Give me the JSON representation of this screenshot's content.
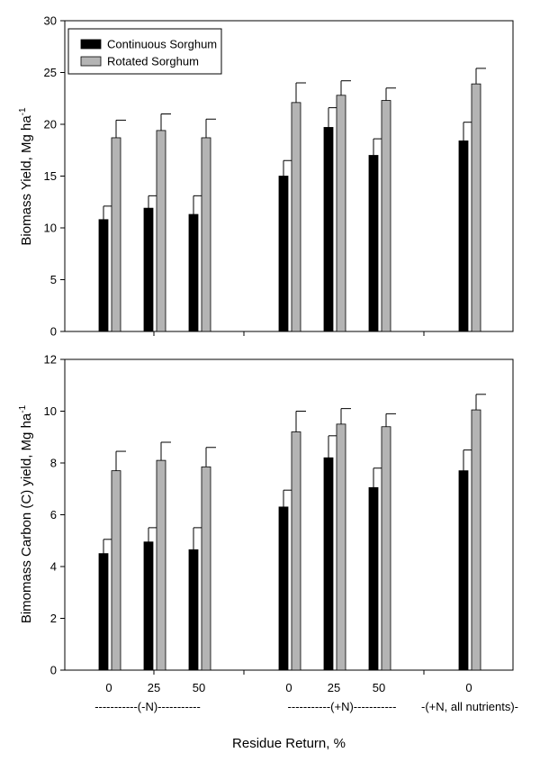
{
  "colors": {
    "continuous": "#000000",
    "rotated": "#b4b4b4",
    "axis": "#000000"
  },
  "legend": {
    "items": [
      {
        "label": "Continuous Sorghum",
        "color": "#000000"
      },
      {
        "label": "Rotated Sorghum",
        "color": "#b4b4b4"
      }
    ],
    "placement": "top-left (upper panel)"
  },
  "x_axis": {
    "title": "Residue Return, %",
    "group_labels": [
      "-----------(-N)-----------",
      "-----------(+N)-----------",
      "-(+N, all nutrients)-"
    ]
  },
  "chart_data": [
    {
      "type": "bar",
      "id": "biomass",
      "ylabel": "Biomass Yield, Mg ha",
      "ylabel_sup": "-1",
      "ylim": [
        0,
        30
      ],
      "yticks": [
        "0",
        "5",
        "10",
        "15",
        "20",
        "25",
        "30"
      ],
      "ytick_values": [
        0,
        5,
        10,
        15,
        20,
        25,
        30
      ],
      "categories": [
        "0",
        "25",
        "50",
        "0",
        "25",
        "50",
        "0"
      ],
      "groups": [
        "(-N)",
        "(-N)",
        "(-N)",
        "(+N)",
        "(+N)",
        "(+N)",
        "(+N, all nutrients)"
      ],
      "series": [
        {
          "name": "Continuous Sorghum",
          "values": [
            10.8,
            11.9,
            11.3,
            15.0,
            19.7,
            17.0,
            18.4
          ],
          "errors": [
            1.3,
            1.2,
            1.8,
            1.5,
            1.9,
            1.6,
            1.8
          ]
        },
        {
          "name": "Rotated Sorghum",
          "values": [
            18.7,
            19.4,
            18.7,
            22.1,
            22.8,
            22.3,
            23.9
          ],
          "errors": [
            1.7,
            1.6,
            1.8,
            1.9,
            1.4,
            1.2,
            1.5
          ]
        }
      ]
    },
    {
      "type": "bar",
      "id": "carbon",
      "ylabel": "Bimomass Carbon (C) yield, Mg ha",
      "ylabel_sup": "-1",
      "ylim": [
        0,
        12
      ],
      "yticks": [
        "0",
        "2",
        "4",
        "6",
        "8",
        "10",
        "12"
      ],
      "ytick_values": [
        0,
        2,
        4,
        6,
        8,
        10,
        12
      ],
      "categories": [
        "0",
        "25",
        "50",
        "0",
        "25",
        "50",
        "0"
      ],
      "groups": [
        "(-N)",
        "(-N)",
        "(-N)",
        "(+N)",
        "(+N)",
        "(+N)",
        "(+N, all nutrients)"
      ],
      "series": [
        {
          "name": "Continuous Sorghum",
          "values": [
            4.5,
            4.95,
            4.65,
            6.3,
            8.2,
            7.05,
            7.7
          ],
          "errors": [
            0.55,
            0.55,
            0.85,
            0.65,
            0.85,
            0.75,
            0.8
          ]
        },
        {
          "name": "Rotated Sorghum",
          "values": [
            7.7,
            8.1,
            7.85,
            9.2,
            9.5,
            9.4,
            10.05
          ],
          "errors": [
            0.75,
            0.7,
            0.75,
            0.8,
            0.6,
            0.5,
            0.6
          ]
        }
      ]
    }
  ]
}
